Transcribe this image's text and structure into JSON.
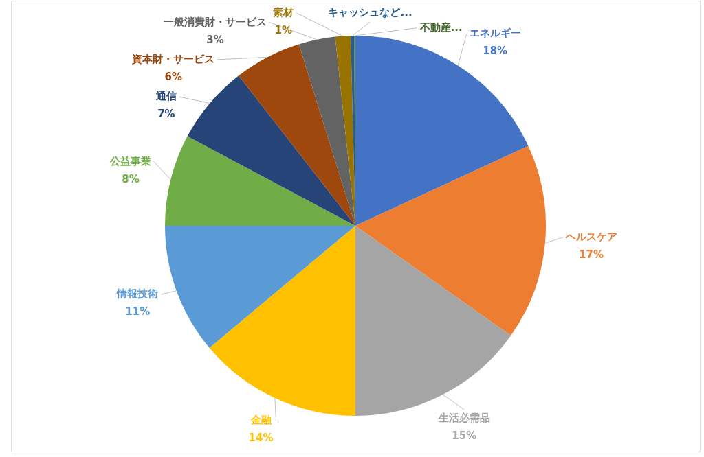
{
  "chart_data": {
    "type": "pie",
    "categories": [
      "エネルギー",
      "ヘルスケア",
      "生活必需品",
      "金融",
      "情報技術",
      "公益事業",
      "通信",
      "資本財・サービス",
      "一般消費財・サービス",
      "素材",
      "キャッシュなど...",
      "不動産..."
    ],
    "values": [
      18.1,
      16.7,
      15.2,
      13.9,
      11.1,
      7.8,
      6.7,
      5.7,
      3.1,
      1.3,
      0.3,
      0.1
    ],
    "colors": [
      "#4472c4",
      "#ed7d31",
      "#a5a5a5",
      "#ffc000",
      "#5b9bd5",
      "#70ad47",
      "#264478",
      "#9e480e",
      "#636363",
      "#997300",
      "#255e91",
      "#43682b"
    ],
    "value_labels": [
      "18%",
      "17%",
      "15%",
      "14%",
      "11%",
      "8%",
      "7%",
      "6%",
      "3%",
      "1%",
      null,
      null
    ]
  }
}
